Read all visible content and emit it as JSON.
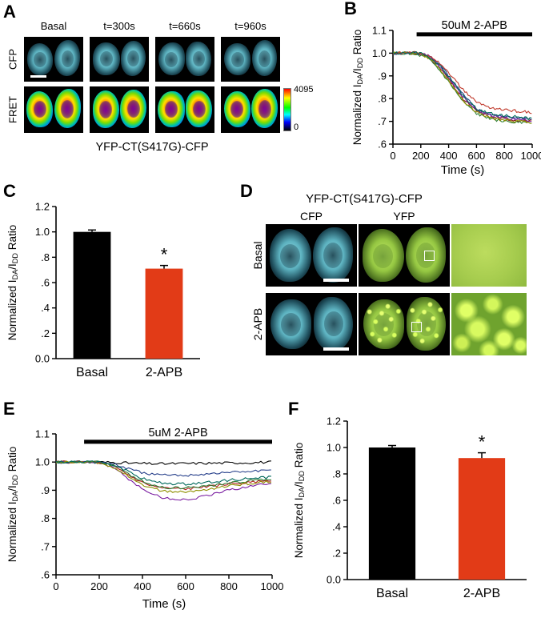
{
  "panels": {
    "A": {
      "label": "A",
      "columns": [
        "Basal",
        "t=300s",
        "t=660s",
        "t=960s"
      ],
      "rows": [
        "CFP",
        "FRET"
      ],
      "colorbar_max": "4095",
      "colorbar_min": "0",
      "caption": "YFP-CT(S417G)-CFP"
    },
    "B": {
      "label": "B"
    },
    "C": {
      "label": "C"
    },
    "D": {
      "label": "D",
      "title": "YFP-CT(S417G)-CFP",
      "columns": [
        "CFP",
        "YFP"
      ],
      "rows": [
        "Basal",
        "2-APB"
      ]
    },
    "E": {
      "label": "E"
    },
    "F": {
      "label": "F"
    }
  },
  "axis_labels": {
    "y_rich": [
      "Normalized I",
      "DA",
      "/I",
      "DD",
      " Ratio"
    ],
    "x": "Time (s)"
  },
  "chart_data": [
    {
      "id": "B",
      "type": "line",
      "xlabel": "Time (s)",
      "ylabel": "Normalized IDA/IDD Ratio",
      "xlim": [
        0,
        1000
      ],
      "ylim": [
        0.6,
        1.1
      ],
      "xticks": [
        0,
        200,
        400,
        600,
        800,
        1000
      ],
      "ytick_vals": [
        0.6,
        0.7,
        0.8,
        0.9,
        1.0,
        1.1
      ],
      "ytick_labels": [
        ".6",
        ".7",
        ".8",
        ".9",
        "1.0",
        "1.1"
      ],
      "treatment_bar": {
        "label": "50uM 2-APB",
        "x_start": 170,
        "x_end": 1000,
        "y": 1.083
      },
      "margins": {
        "l": 36,
        "t": 26,
        "r": 8,
        "b": 42
      },
      "noise": 0.006,
      "step": 12,
      "kx": [
        0,
        100,
        200,
        250,
        300,
        350,
        400,
        500,
        600,
        700,
        800,
        900,
        1000
      ],
      "series": [
        {
          "name": "cell1",
          "color": "#8b1a1a",
          "y": [
            1.0,
            1.0,
            0.995,
            0.985,
            0.96,
            0.925,
            0.885,
            0.8,
            0.745,
            0.72,
            0.71,
            0.705,
            0.7
          ]
        },
        {
          "name": "cell2",
          "color": "#27408b",
          "y": [
            1.0,
            1.002,
            1.0,
            0.99,
            0.97,
            0.94,
            0.9,
            0.82,
            0.755,
            0.73,
            0.72,
            0.715,
            0.705
          ]
        },
        {
          "name": "cell3",
          "color": "#2e7d32",
          "y": [
            1.0,
            0.998,
            0.99,
            0.978,
            0.95,
            0.915,
            0.875,
            0.79,
            0.735,
            0.71,
            0.7,
            0.695,
            0.69
          ]
        },
        {
          "name": "cell4",
          "color": "#7b1fa2",
          "y": [
            1.0,
            1.0,
            0.998,
            0.99,
            0.965,
            0.932,
            0.893,
            0.81,
            0.75,
            0.725,
            0.715,
            0.71,
            0.7
          ]
        },
        {
          "name": "cell5",
          "color": "#8f8f00",
          "y": [
            1.0,
            1.002,
            0.995,
            0.982,
            0.955,
            0.92,
            0.88,
            0.795,
            0.74,
            0.715,
            0.705,
            0.7,
            0.695
          ]
        },
        {
          "name": "cell6",
          "color": "#c0392b",
          "y": [
            1.0,
            1.004,
            1.0,
            0.995,
            0.975,
            0.948,
            0.915,
            0.84,
            0.785,
            0.76,
            0.75,
            0.745,
            0.74
          ]
        },
        {
          "name": "cell7",
          "color": "#00695c",
          "y": [
            1.0,
            1.0,
            1.0,
            0.988,
            0.965,
            0.935,
            0.898,
            0.815,
            0.755,
            0.735,
            0.725,
            0.72,
            0.71
          ]
        }
      ]
    },
    {
      "id": "C",
      "type": "bar",
      "categories": [
        "Basal",
        "2-APB"
      ],
      "values": [
        1.0,
        0.71
      ],
      "errors": [
        0.015,
        0.025
      ],
      "colors": [
        "#000000",
        "#e23b17"
      ],
      "sig": [
        null,
        "*"
      ],
      "ylabel": "Normalized IDA/IDD Ratio",
      "ylim": [
        0,
        1.2
      ],
      "ytick_vals": [
        0,
        0.2,
        0.4,
        0.6,
        0.8,
        1.0,
        1.2
      ],
      "ytick_labels": [
        "0.0",
        ".2",
        ".4",
        ".6",
        ".8",
        "1.0",
        "1.2"
      ],
      "margins": {
        "l": 42,
        "t": 14,
        "r": 10,
        "b": 34
      }
    },
    {
      "id": "E",
      "type": "line",
      "xlabel": "Time (s)",
      "ylabel": "Normalized IDA/IDD Ratio",
      "xlim": [
        0,
        1000
      ],
      "ylim": [
        0.6,
        1.1
      ],
      "xticks": [
        0,
        200,
        400,
        600,
        800,
        1000
      ],
      "ytick_vals": [
        0.6,
        0.7,
        0.8,
        0.9,
        1.0,
        1.1
      ],
      "ytick_labels": [
        ".6",
        ".7",
        ".8",
        ".9",
        "1.0",
        "1.1"
      ],
      "treatment_bar": {
        "label": "5uM 2-APB",
        "x_start": 130,
        "x_end": 1000,
        "y": 1.072
      },
      "margins": {
        "l": 40,
        "t": 30,
        "r": 10,
        "b": 46
      },
      "noise": 0.0045,
      "step": 12,
      "kx": [
        0,
        100,
        200,
        250,
        300,
        350,
        400,
        450,
        500,
        600,
        700,
        800,
        900,
        1000
      ],
      "series": [
        {
          "name": "cell1",
          "color": "#000000",
          "y": [
            1.0,
            1.0,
            1.0,
            0.999,
            0.998,
            0.996,
            0.995,
            0.994,
            0.994,
            0.995,
            0.996,
            0.997,
            0.998,
            1.0
          ]
        },
        {
          "name": "cell2",
          "color": "#27408b",
          "y": [
            1.0,
            1.0,
            1.0,
            0.995,
            0.985,
            0.972,
            0.962,
            0.956,
            0.953,
            0.953,
            0.958,
            0.963,
            0.967,
            0.97
          ]
        },
        {
          "name": "cell3",
          "color": "#b22222",
          "y": [
            1.0,
            1.0,
            0.998,
            0.99,
            0.972,
            0.948,
            0.928,
            0.915,
            0.908,
            0.905,
            0.912,
            0.922,
            0.928,
            0.932
          ]
        },
        {
          "name": "cell4",
          "color": "#7b1fa2",
          "y": [
            1.0,
            1.0,
            0.997,
            0.985,
            0.962,
            0.932,
            0.905,
            0.885,
            0.872,
            0.865,
            0.88,
            0.9,
            0.915,
            0.925
          ]
        },
        {
          "name": "cell5",
          "color": "#2e7d32",
          "y": [
            1.0,
            1.0,
            1.0,
            0.992,
            0.975,
            0.952,
            0.932,
            0.918,
            0.91,
            0.908,
            0.915,
            0.925,
            0.933,
            0.94
          ]
        },
        {
          "name": "cell6",
          "color": "#8f8f00",
          "y": [
            1.0,
            1.0,
            0.998,
            0.988,
            0.968,
            0.942,
            0.92,
            0.905,
            0.896,
            0.893,
            0.903,
            0.915,
            0.925,
            0.932
          ]
        },
        {
          "name": "cell7",
          "color": "#00695c",
          "y": [
            1.0,
            1.0,
            1.0,
            0.994,
            0.98,
            0.96,
            0.942,
            0.93,
            0.924,
            0.922,
            0.928,
            0.936,
            0.942,
            0.947
          ]
        }
      ]
    },
    {
      "id": "F",
      "type": "bar",
      "categories": [
        "Basal",
        "2-APB"
      ],
      "values": [
        1.0,
        0.92
      ],
      "errors": [
        0.015,
        0.04
      ],
      "colors": [
        "#000000",
        "#e23b17"
      ],
      "sig": [
        null,
        "*"
      ],
      "ylabel": "Normalized IDA/IDD Ratio",
      "ylim": [
        0,
        1.2
      ],
      "ytick_vals": [
        0,
        0.2,
        0.4,
        0.6,
        0.8,
        1.0,
        1.2
      ],
      "ytick_labels": [
        "0.0",
        ".2",
        ".4",
        ".6",
        ".8",
        "1.0",
        "1.2"
      ],
      "margins": {
        "l": 46,
        "t": 14,
        "r": 14,
        "b": 36
      }
    }
  ]
}
